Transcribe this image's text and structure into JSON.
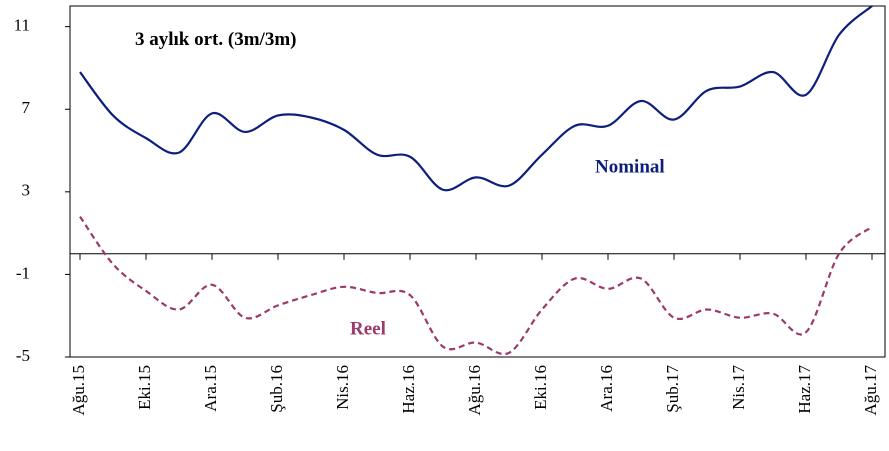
{
  "chart_data": {
    "type": "line",
    "annotations": [
      "3 aylık  ort. (3m/3m)"
    ],
    "categories": [
      "Ağu.15",
      null,
      "Eki.15",
      null,
      "Ara.15",
      null,
      "Şub.16",
      null,
      "Nis.16",
      null,
      "Haz.16",
      null,
      "Ağu.16",
      null,
      "Eki.16",
      null,
      "Ara.16",
      null,
      "Şub.17",
      null,
      "Nis.17",
      null,
      "Haz.17",
      null,
      "Ağu.17"
    ],
    "series": [
      {
        "name": "Nominal",
        "color": "#0d1f7c",
        "dashed": false,
        "values": [
          8.8,
          6.7,
          5.6,
          4.9,
          6.8,
          5.9,
          6.7,
          6.6,
          6.0,
          4.8,
          4.7,
          3.1,
          3.7,
          3.3,
          4.8,
          6.2,
          6.2,
          7.4,
          6.5,
          7.9,
          8.1,
          8.8,
          7.7,
          10.6,
          12.0
        ]
      },
      {
        "name": "Reel",
        "color": "#9b3a6b",
        "dashed": true,
        "values": [
          1.8,
          -0.5,
          -1.8,
          -2.7,
          -1.5,
          -3.1,
          -2.5,
          -2.0,
          -1.6,
          -1.9,
          -2.0,
          -4.5,
          -4.3,
          -4.8,
          -2.7,
          -1.2,
          -1.7,
          -1.2,
          -3.1,
          -2.7,
          -3.1,
          -2.9,
          -3.8,
          0.0,
          1.3
        ]
      }
    ],
    "ylim": [
      -5,
      12
    ],
    "yticks": [
      -5,
      -1,
      3,
      7,
      11
    ]
  }
}
